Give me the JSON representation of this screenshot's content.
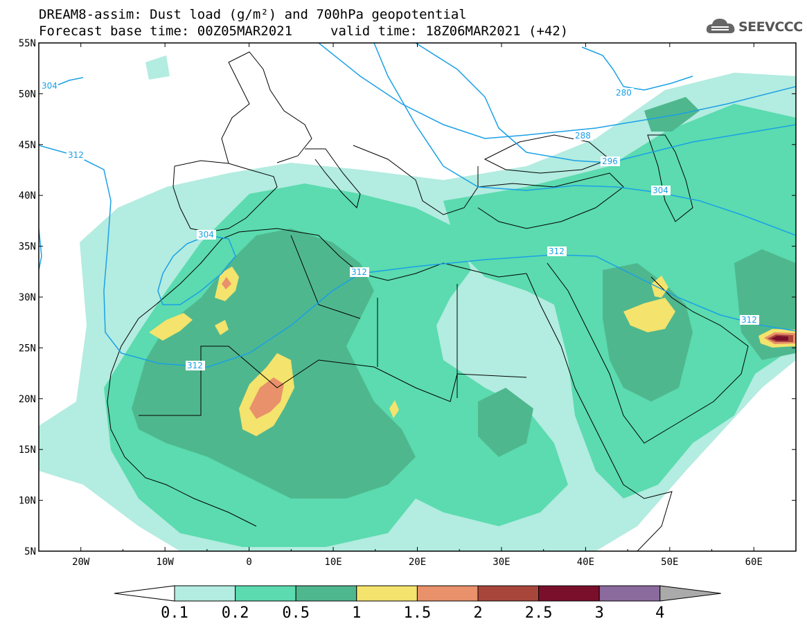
{
  "title": {
    "line1": "DREAM8-assim: Dust load (g/m²) and 700hPa geopotential",
    "base_time": "Forecast base time: 00Z05MAR2021",
    "valid_time": "valid time: 18Z06MAR2021 (+42)"
  },
  "logo": {
    "icon": "cloud-icon",
    "text": "SEEVCCC"
  },
  "axes": {
    "lat_labels": [
      "55N",
      "50N",
      "45N",
      "40N",
      "35N",
      "30N",
      "25N",
      "20N",
      "15N",
      "10N",
      "5N"
    ],
    "lon_labels": [
      "20W",
      "10W",
      "0",
      "10E",
      "20E",
      "30E",
      "40E",
      "50E",
      "60E"
    ],
    "lat_range": [
      5,
      55
    ],
    "lon_range": [
      -25,
      65
    ]
  },
  "colorbar": {
    "labels": [
      "0.1",
      "0.2",
      "0.5",
      "1",
      "1.5",
      "2",
      "2.5",
      "3",
      "4"
    ],
    "colors": [
      "#b3ece0",
      "#5bdbaf",
      "#4fb78e",
      "#f4e36c",
      "#e8916a",
      "#a8463c",
      "#7a0f2c",
      "#8b6a9e"
    ],
    "under_color": "#ffffff",
    "over_color": "#aaaaaa"
  },
  "contour_labels": [
    "304",
    "312",
    "304",
    "312",
    "312",
    "312",
    "312",
    "280",
    "288",
    "296",
    "304"
  ],
  "colors": {
    "contour": "#1aa0e6",
    "coast": "#000000",
    "dust_light": "#b3ece0",
    "dust_med": "#5bdbaf",
    "dust_dark": "#4fb78e",
    "dust_yellow": "#f4e36c",
    "dust_orange": "#e8916a",
    "dust_brown": "#a8463c",
    "dust_maroon": "#7a0f2c"
  }
}
